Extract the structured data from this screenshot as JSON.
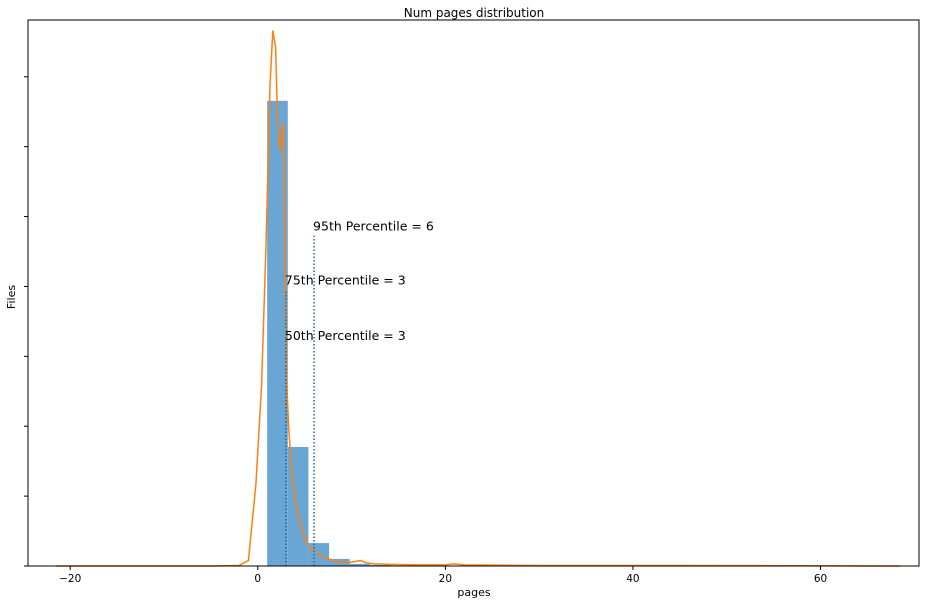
{
  "chart_data": {
    "type": "bar",
    "title": "Num pages distribution",
    "xlabel": "pages",
    "ylabel": "Files",
    "xlim": [
      -24.5,
      70.5
    ],
    "ylim": [
      0,
      1.0
    ],
    "x_ticks": [
      -20,
      0,
      20,
      40,
      60
    ],
    "y_tick_labels": "none",
    "grid": false,
    "legend": "none",
    "colors": {
      "bars": "#6aa6d3",
      "kde": "#ff7f0e",
      "percentile_lines": "#1f6f96"
    },
    "bins": [
      {
        "start": 1.0,
        "end": 3.2,
        "value": 0.852
      },
      {
        "start": 3.2,
        "end": 5.4,
        "value": 0.218
      },
      {
        "start": 5.4,
        "end": 7.6,
        "value": 0.042
      },
      {
        "start": 7.6,
        "end": 9.8,
        "value": 0.013
      },
      {
        "start": 9.8,
        "end": 12.0,
        "value": 0.004
      },
      {
        "start": 12.0,
        "end": 14.2,
        "value": 0.002
      },
      {
        "start": 14.2,
        "end": 16.4,
        "value": 0.001
      },
      {
        "start": 16.4,
        "end": 18.6,
        "value": 0.001
      }
    ],
    "kde_series": {
      "x": [
        -21.5,
        -5,
        -2,
        -1,
        -0.2,
        0.4,
        0.9,
        1.3,
        1.6,
        1.9,
        2.1,
        2.4,
        2.7,
        2.8,
        2.9,
        3.1,
        3.3,
        3.7,
        4.2,
        4.8,
        5.5,
        6.5,
        7.5,
        8.5,
        9.5,
        10.3,
        11.0,
        11.5,
        12.5,
        14,
        17,
        20,
        20.9,
        22,
        30,
        45,
        68.5
      ],
      "y": [
        0,
        0,
        0.001,
        0.01,
        0.15,
        0.33,
        0.6,
        0.88,
        0.98,
        0.95,
        0.82,
        0.76,
        0.81,
        0.75,
        0.55,
        0.33,
        0.25,
        0.16,
        0.1,
        0.06,
        0.035,
        0.02,
        0.013,
        0.008,
        0.006,
        0.008,
        0.01,
        0.006,
        0.004,
        0.003,
        0.002,
        0.002,
        0.004,
        0.002,
        0.001,
        0.001,
        0
      ]
    },
    "percentiles": [
      {
        "label": "50th Percentile = 3",
        "x": 3,
        "y_top": 0.404,
        "text_y": 0.41
      },
      {
        "label": "75th Percentile = 3",
        "x": 3,
        "y_top": 0.506,
        "text_y": 0.512
      },
      {
        "label": "95th Percentile = 6",
        "x": 6,
        "y_top": 0.605,
        "text_y": 0.611
      }
    ]
  }
}
